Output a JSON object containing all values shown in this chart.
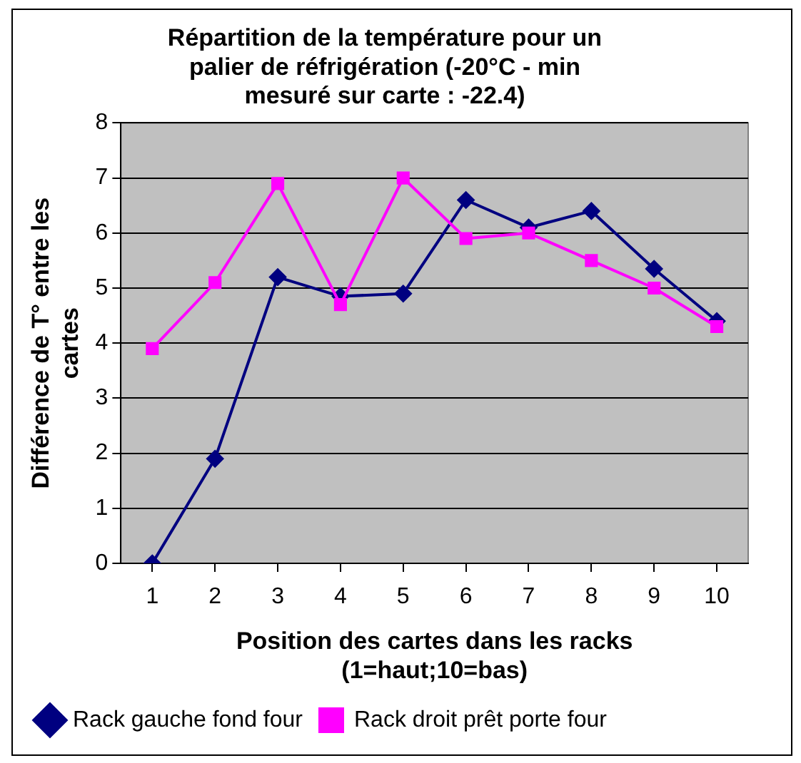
{
  "chart_data": {
    "type": "line",
    "title": "Répartition de la température pour un palier de réfrigération (-20°C - min mesuré sur carte : -22.4)",
    "xlabel": "Position des cartes dans les racks (1=haut;10=bas)",
    "ylabel": "Différence de T° entre les cartes",
    "categories": [
      "1",
      "2",
      "3",
      "4",
      "5",
      "6",
      "7",
      "8",
      "9",
      "10"
    ],
    "series": [
      {
        "name": "Rack gauche fond four",
        "color": "#000080",
        "marker": "diamond",
        "values": [
          0,
          1.9,
          5.2,
          4.85,
          4.9,
          6.6,
          6.1,
          6.4,
          5.35,
          4.4
        ]
      },
      {
        "name": "Rack droit prêt porte four",
        "color": "#ff00ff",
        "marker": "square",
        "values": [
          3.9,
          5.1,
          6.9,
          4.7,
          7.0,
          5.9,
          6.0,
          5.5,
          5.0,
          4.3
        ]
      }
    ],
    "ylim": [
      0,
      8
    ],
    "yticks": [
      0,
      1,
      2,
      3,
      4,
      5,
      6,
      7,
      8
    ],
    "grid": "y",
    "legend": "bottom left"
  }
}
